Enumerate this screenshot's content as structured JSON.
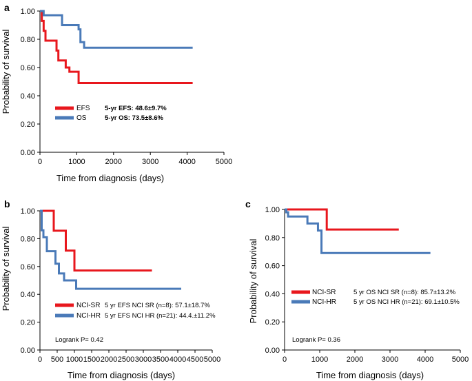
{
  "colors": {
    "red": "#e8171d",
    "blue": "#4a7ab8",
    "axis": "#000000"
  },
  "chart_data": [
    {
      "panel": "a",
      "type": "line",
      "step": true,
      "xlabel": "Time from diagnosis (days)",
      "ylabel": "Probability of survival",
      "xlim": [
        0,
        5000
      ],
      "ylim": [
        0,
        1
      ],
      "xticks": [
        "0",
        "1000",
        "2000",
        "3000",
        "4000",
        "5000"
      ],
      "yticks": [
        "0.00",
        "0.20",
        "0.40",
        "0.60",
        "0.80",
        "1.00"
      ],
      "series": [
        {
          "name": "EFS",
          "color": "#e8171d",
          "x": [
            0,
            50,
            100,
            150,
            400,
            450,
            500,
            600,
            700,
            800,
            900,
            1050,
            4150
          ],
          "y": [
            1.0,
            0.93,
            0.86,
            0.79,
            0.79,
            0.72,
            0.65,
            0.65,
            0.6,
            0.57,
            0.57,
            0.49,
            0.49
          ]
        },
        {
          "name": "OS",
          "color": "#4a7ab8",
          "x": [
            0,
            100,
            600,
            1050,
            1100,
            1200,
            4150
          ],
          "y": [
            1.0,
            0.97,
            0.9,
            0.87,
            0.78,
            0.74,
            0.74
          ]
        }
      ],
      "legend": [
        {
          "label": "EFS",
          "stat": "5-yr EFS: 48.6±9.7%"
        },
        {
          "label": "OS",
          "stat": "5-yr OS: 73.5±8.6%"
        }
      ]
    },
    {
      "panel": "b",
      "type": "line",
      "step": true,
      "xlabel": "Time from diagnosis (days)",
      "ylabel": "Probability of survival",
      "xlim": [
        0,
        5000
      ],
      "ylim": [
        0,
        1
      ],
      "xticks": [
        "0",
        "500",
        "1000",
        "1500",
        "2000",
        "2500",
        "3000",
        "3500",
        "4000",
        "4500",
        "5000"
      ],
      "yticks": [
        "0.00",
        "0.20",
        "0.40",
        "0.60",
        "0.80",
        "1.00"
      ],
      "series": [
        {
          "name": "NCI-SR",
          "color": "#e8171d",
          "x": [
            0,
            400,
            750,
            1000,
            3250
          ],
          "y": [
            1.0,
            0.857,
            0.714,
            0.571,
            0.571
          ]
        },
        {
          "name": "NCI-HR",
          "color": "#4a7ab8",
          "x": [
            0,
            50,
            100,
            200,
            450,
            550,
            700,
            1050,
            4100
          ],
          "y": [
            1.0,
            0.86,
            0.81,
            0.71,
            0.62,
            0.55,
            0.5,
            0.44,
            0.44
          ]
        }
      ],
      "legend": [
        {
          "label": "NCI-SR",
          "stat": "5 yr EFS NCI SR  (n=8):   57.1±18.7%"
        },
        {
          "label": "NCI-HR",
          "stat": "5 yr EFS NCI HR (n=21): 44.4.±11.2%"
        }
      ],
      "annotation": "Logrank P= 0.42"
    },
    {
      "panel": "c",
      "type": "line",
      "step": true,
      "xlabel": "Time from diagnosis (days)",
      "ylabel": "Probability of survival",
      "xlim": [
        0,
        5000
      ],
      "ylim": [
        0,
        1
      ],
      "xticks": [
        "0",
        "1000",
        "2000",
        "3000",
        "4000",
        "5000"
      ],
      "yticks": [
        "0.00",
        "0.20",
        "0.40",
        "0.60",
        "0.80",
        "1.00"
      ],
      "series": [
        {
          "name": "NCI-SR",
          "color": "#e8171d",
          "x": [
            0,
            1200,
            3250
          ],
          "y": [
            1.0,
            0.857,
            0.857
          ]
        },
        {
          "name": "NCI-HR",
          "color": "#4a7ab8",
          "x": [
            0,
            50,
            100,
            650,
            950,
            1050,
            4150
          ],
          "y": [
            1.0,
            0.98,
            0.95,
            0.9,
            0.85,
            0.69,
            0.69
          ]
        }
      ],
      "legend": [
        {
          "label": "NCI-SR",
          "stat": "5 yr OS NCI SR (n=8):     85.7±13.2%"
        },
        {
          "label": "NCI-HR",
          "stat": "5 yr OS NCI HR (n=21): 69.1±10.5%"
        }
      ],
      "annotation": "Logrank P= 0.36"
    }
  ]
}
